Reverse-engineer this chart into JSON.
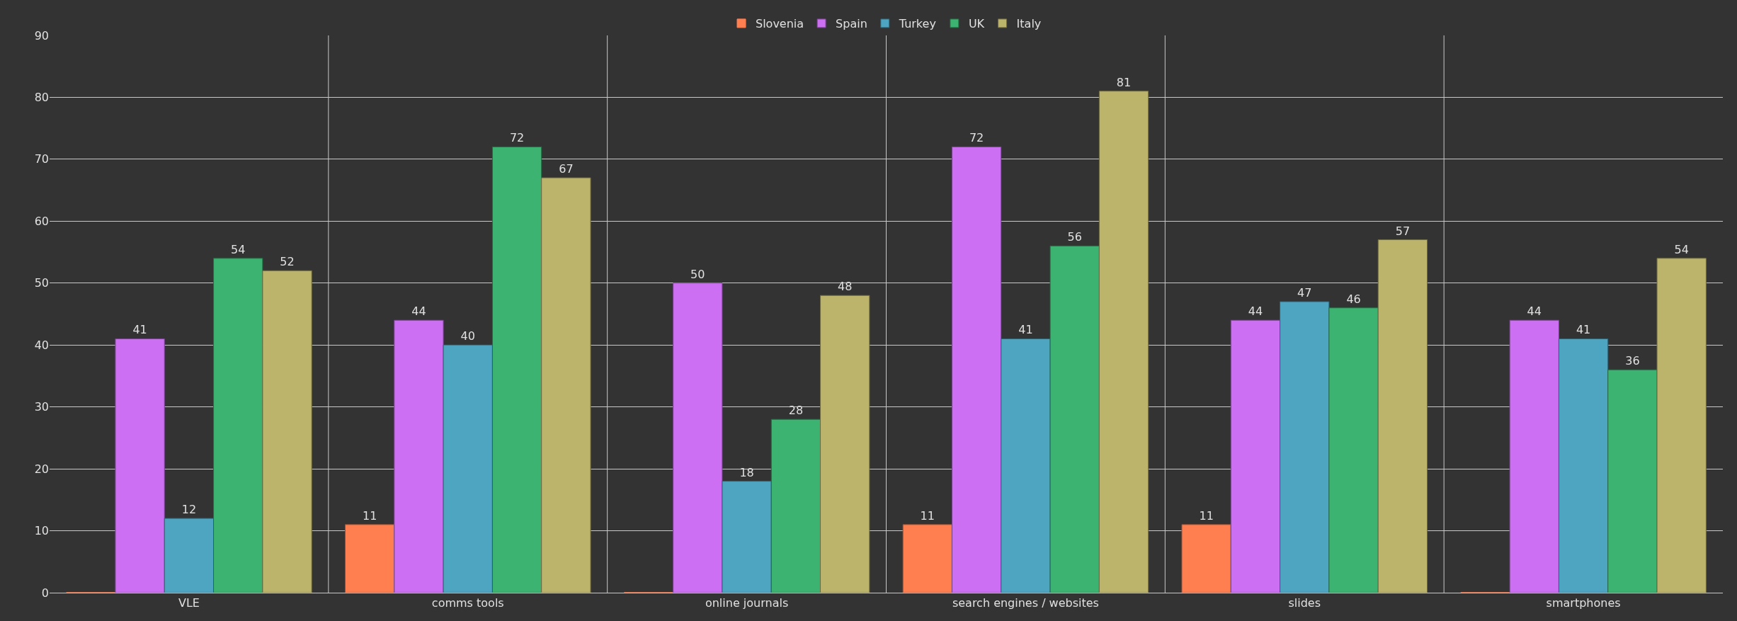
{
  "chart_data": {
    "type": "bar",
    "categories": [
      "VLE",
      "comms tools",
      "online journals",
      "search engines / websites",
      "slides",
      "smartphones"
    ],
    "series": [
      {
        "name": "Slovenia",
        "color": "#ff7f50",
        "values": [
          0,
          11,
          0,
          11,
          11,
          0
        ],
        "value_labels": [
          null,
          "11",
          null,
          "11",
          "11",
          null
        ]
      },
      {
        "name": "Spain",
        "color": "#cc6ff2",
        "values": [
          41,
          44,
          50,
          72,
          44,
          44
        ],
        "value_labels": [
          "41",
          "44",
          "50",
          "72",
          "44",
          "44"
        ]
      },
      {
        "name": "Turkey",
        "color": "#4ea5c2",
        "values": [
          12,
          40,
          18,
          41,
          47,
          41
        ],
        "value_labels": [
          "12",
          "40",
          "18",
          "41",
          "47",
          "41"
        ]
      },
      {
        "name": "UK",
        "color": "#3cb371",
        "values": [
          54,
          72,
          28,
          56,
          46,
          36
        ],
        "value_labels": [
          "54",
          "72",
          "28",
          "56",
          "46",
          "36"
        ]
      },
      {
        "name": "Italy",
        "color": "#bdb46b",
        "values": [
          52,
          67,
          48,
          81,
          57,
          54
        ],
        "value_labels": [
          "52",
          "67",
          "48",
          "81",
          "57",
          "54"
        ]
      }
    ],
    "ylim": [
      0,
      90
    ],
    "yticks": [
      0,
      10,
      20,
      30,
      40,
      50,
      60,
      70,
      80,
      90
    ],
    "grid": true,
    "legend": "top"
  }
}
